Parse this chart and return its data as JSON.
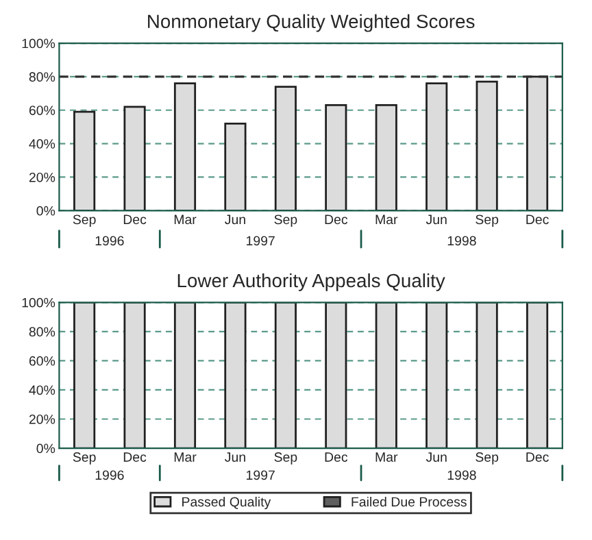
{
  "chart_data": [
    {
      "type": "bar",
      "title": "Nonmonetary Quality Weighted Scores",
      "categories": [
        "Sep",
        "Dec",
        "Mar",
        "Jun",
        "Sep",
        "Dec",
        "Mar",
        "Jun",
        "Sep",
        "Dec"
      ],
      "series": [
        {
          "color": "#dcdcdc",
          "values": [
            59,
            62,
            76,
            52,
            74,
            63,
            63,
            76,
            77,
            80
          ]
        }
      ],
      "ylim": [
        0,
        100
      ],
      "yticks": [
        {
          "value": 0,
          "label": "0%"
        },
        {
          "value": 20,
          "label": "20%"
        },
        {
          "value": 40,
          "label": "40%"
        },
        {
          "value": 60,
          "label": "60%"
        },
        {
          "value": 80,
          "label": "80%"
        },
        {
          "value": 100,
          "label": "100%"
        }
      ],
      "grid": "y",
      "ref_lines": [
        {
          "axis": "y",
          "value": 80,
          "color": "#303030",
          "line_style": "dashed"
        }
      ],
      "annotations": [
        "1996",
        "1997",
        "1998"
      ]
    },
    {
      "type": "bar",
      "title": "Lower Authority Appeals Quality",
      "categories": [
        "Sep",
        "Dec",
        "Mar",
        "Jun",
        "Sep",
        "Dec",
        "Mar",
        "Jun",
        "Sep",
        "Dec"
      ],
      "stacked": true,
      "series": [
        {
          "name": "Passed Quality",
          "color": "#dcdcdc",
          "values": [
            100,
            100,
            100,
            100,
            100,
            100,
            100,
            100,
            100,
            100
          ]
        },
        {
          "name": "Failed Due Process",
          "color": "#606060",
          "values": [
            0,
            0,
            0,
            0,
            0,
            0,
            0,
            0,
            0,
            0
          ]
        }
      ],
      "ylim": [
        0,
        100
      ],
      "yticks": [
        {
          "value": 0,
          "label": "0%"
        },
        {
          "value": 20,
          "label": "20%"
        },
        {
          "value": 40,
          "label": "40%"
        },
        {
          "value": 60,
          "label": "60%"
        },
        {
          "value": 80,
          "label": "80%"
        },
        {
          "value": 100,
          "label": "100%"
        }
      ],
      "grid": "y",
      "legend": "bottom",
      "annotations": [
        "1996",
        "1997",
        "1998"
      ]
    }
  ]
}
